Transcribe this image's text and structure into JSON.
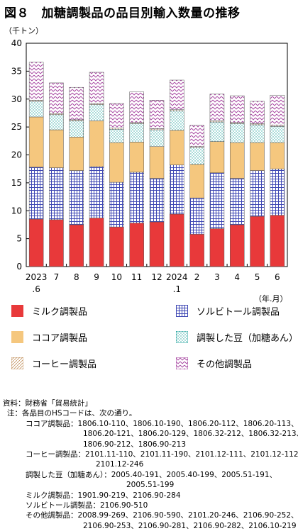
{
  "title": "図８　加糖調製品の品目別輸入数量の推移",
  "unit_label": "（千トン）",
  "period_unit": "（年.月）",
  "chart_data": {
    "type": "bar",
    "stacked": true,
    "categories": [
      "2023\n.6",
      "7",
      "8",
      "9",
      "10",
      "11",
      "12",
      "2024\n.1",
      "2",
      "3",
      "4",
      "5",
      "6"
    ],
    "ylim": [
      0,
      40
    ],
    "yticks": [
      0,
      5,
      10,
      15,
      20,
      25,
      30,
      35,
      40
    ],
    "grid": false,
    "legend_position": "bottom",
    "series": [
      {
        "name": "ミルク調製品",
        "color": "#e8393a",
        "pattern": "solid",
        "values": [
          8.5,
          8.4,
          7.5,
          8.7,
          7.1,
          7.8,
          8.0,
          9.4,
          5.8,
          6.8,
          7.5,
          9.0,
          9.2
        ]
      },
      {
        "name": "ソルビトール調製品",
        "color": "#3f48b4",
        "pattern": "grid",
        "values": [
          9.3,
          9.3,
          9.7,
          9.2,
          8.0,
          9.1,
          7.8,
          8.8,
          6.5,
          10.0,
          8.3,
          8.2,
          8.3
        ]
      },
      {
        "name": "ココア調製品",
        "color": "#f5c77e",
        "pattern": "solid",
        "values": [
          9.0,
          6.8,
          6.0,
          8.2,
          7.1,
          5.4,
          5.7,
          6.2,
          6.0,
          5.6,
          6.4,
          5.0,
          4.7
        ]
      },
      {
        "name": "調製した豆（加糖あん）",
        "color": "#2aa6a1",
        "pattern": "dots",
        "values": [
          2.8,
          2.7,
          2.9,
          2.9,
          2.4,
          3.3,
          3.0,
          3.5,
          3.0,
          3.5,
          3.4,
          3.2,
          2.9
        ]
      },
      {
        "name": "コーヒー調製品",
        "color": "#c79a6a",
        "pattern": "hatch",
        "values": [
          0.2,
          0.2,
          0.2,
          0.2,
          0.2,
          0.2,
          0.2,
          0.2,
          0.2,
          0.2,
          0.2,
          0.2,
          0.2
        ]
      },
      {
        "name": "その他調製品",
        "color": "#a43f9e",
        "pattern": "wave",
        "values": [
          6.8,
          5.5,
          5.8,
          5.6,
          4.4,
          5.5,
          5.1,
          5.3,
          3.8,
          4.8,
          4.8,
          4.0,
          5.4
        ]
      }
    ]
  },
  "legend": [
    {
      "label": "ミルク調製品",
      "series": 0
    },
    {
      "label": "ソルビトール調製品",
      "series": 1
    },
    {
      "label": "ココア調製品",
      "series": 2
    },
    {
      "label": "調製した豆（加糖あん）",
      "series": 3
    },
    {
      "label": "コーヒー調製品",
      "series": 4
    },
    {
      "label": "その他調製品",
      "series": 5
    }
  ],
  "notes": {
    "source": "資料：財務省「貿易統計」",
    "note_head": "注：各品目のHSコードは、次の通り。",
    "items": [
      {
        "label": "ココア調製品：",
        "lines": [
          "1806.10-110、1806.10-190、1806.20-112、1806.20-113、",
          "1806.20-121、1806.20-129、1806.32-212、1806.32-213、",
          "1806.90-212、1806.90-213"
        ]
      },
      {
        "label": "コーヒー調製品：",
        "lines": [
          "2101.11-110、2101.11-190、2101.12-111、2101.12-112、",
          "2101.12-246"
        ]
      },
      {
        "label": "調製した豆（加糖あん）：",
        "lines": [
          "2005.40-191、2005.40-199、2005.51-191、",
          "2005.51-199"
        ]
      },
      {
        "label": "ミルク調製品：",
        "lines": [
          "1901.90-219、2106.90-284"
        ]
      },
      {
        "label": "ソルビトール調製品：",
        "lines": [
          "2106.90-510"
        ]
      },
      {
        "label": "その他調製品：",
        "lines": [
          "2008.99-269、2106.90-590、2101.20-246、2106.90-252、",
          "2106.90-253、2106.90-281、2106.90-282、2106.10-219"
        ]
      }
    ]
  }
}
